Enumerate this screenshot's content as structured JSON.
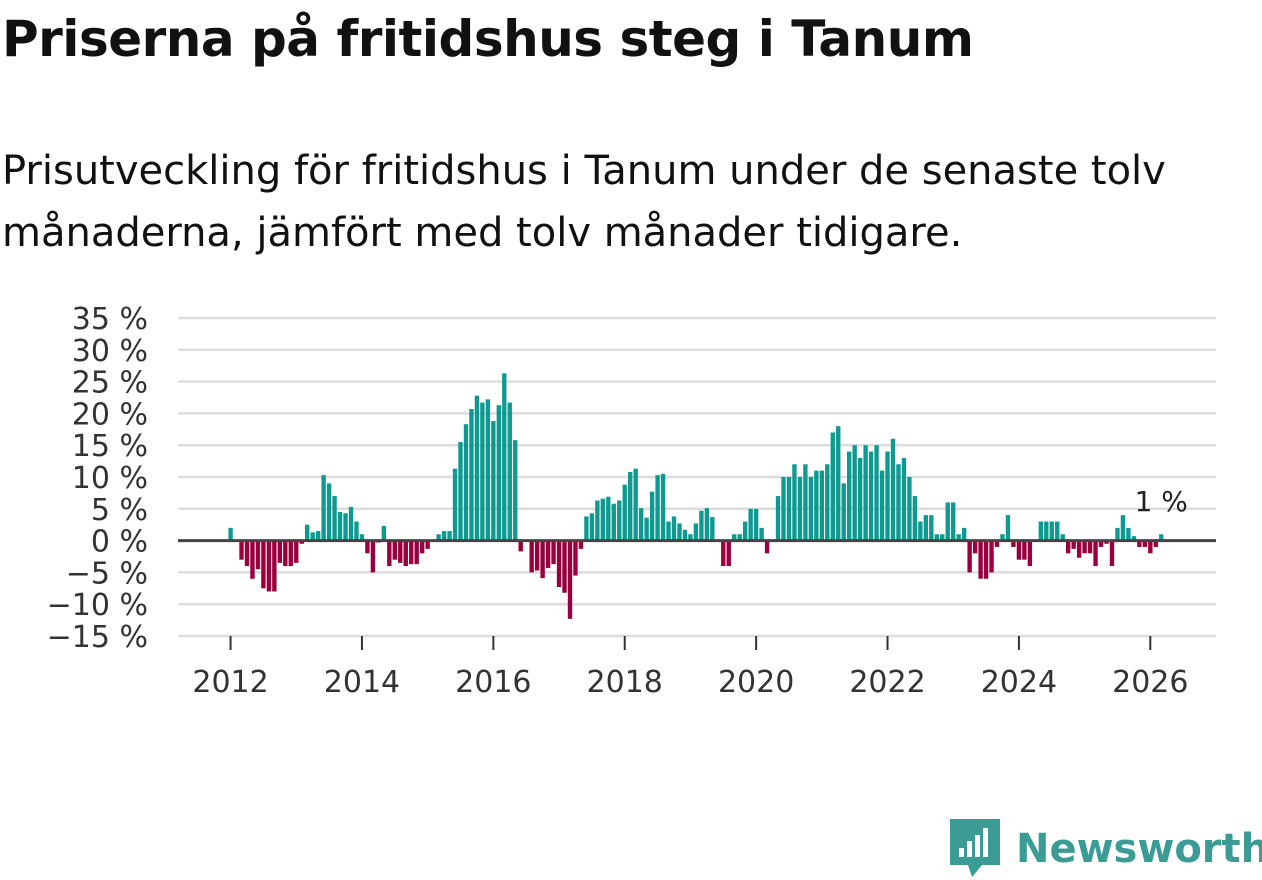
{
  "title": "Priserna på fritidshus steg i Tanum",
  "subtitle": "Prisutveckling för fritidshus i Tanum under de senaste tolv månaderna, jämfört med tolv månader tidigare.",
  "brand": {
    "name": "Newsworthy",
    "icon": "newsworthy-logo-icon",
    "color": "#3a9c94"
  },
  "colors": {
    "positive": "#0f9a91",
    "negative": "#99003d",
    "zero_line": "#444444",
    "grid": "#dddddd"
  },
  "chart_data": {
    "type": "bar",
    "title": "Priserna på fritidshus steg i Tanum",
    "xlabel": "",
    "ylabel": "",
    "ylim": [
      -15,
      35
    ],
    "xlim": [
      2011.2,
      2027.0
    ],
    "y_ticks": [
      -15,
      -10,
      -5,
      0,
      5,
      10,
      15,
      20,
      25,
      30,
      35
    ],
    "y_tick_labels": [
      "−15 %",
      "−10 %",
      "−5 %",
      "0 %",
      "5 %",
      "10 %",
      "15 %",
      "20 %",
      "25 %",
      "30 %",
      "35 %"
    ],
    "x_ticks": [
      2012,
      2014,
      2016,
      2018,
      2020,
      2022,
      2024,
      2026
    ],
    "x_tick_labels": [
      "2012",
      "2014",
      "2016",
      "2018",
      "2020",
      "2022",
      "2024",
      "2026"
    ],
    "grid": true,
    "last_label": "1 %",
    "series": [
      {
        "name": "Prisutveckling",
        "start": "2012-01",
        "frequency": "monthly",
        "values": [
          2,
          0,
          -3,
          -4,
          -6,
          -4.5,
          -7.5,
          -8,
          -8,
          -3.5,
          -4,
          -4,
          -3.5,
          -0.5,
          2.5,
          1.3,
          1.5,
          10.3,
          9,
          7,
          4.5,
          4.3,
          5.3,
          3,
          1,
          -2,
          -5,
          -0.3,
          2.3,
          -4,
          -3,
          -3.5,
          -4,
          -3.7,
          -3.7,
          -2,
          -1.3,
          0,
          1,
          1.5,
          1.5,
          11.3,
          15.5,
          18.3,
          20.7,
          22.8,
          21.7,
          22.2,
          18.8,
          21.3,
          26.3,
          21.7,
          15.8,
          -1.7,
          0,
          -5,
          -4.7,
          -5.9,
          -4.3,
          -3.7,
          -7.3,
          -8.2,
          -12.3,
          -5.5,
          -1.3,
          3.8,
          4.3,
          6.3,
          6.6,
          6.9,
          5.8,
          6.3,
          8.8,
          10.8,
          11.3,
          5.1,
          3.6,
          7.7,
          10.3,
          10.5,
          3,
          3.8,
          2.7,
          1.7,
          1,
          2.7,
          4.7,
          5.1,
          3.7,
          0,
          -4,
          -4,
          1,
          1,
          3,
          5,
          5,
          2,
          -2,
          0,
          7,
          10,
          10,
          12,
          10,
          12,
          10,
          11,
          11,
          12,
          17,
          18,
          9,
          14,
          15,
          13,
          15,
          14,
          15,
          11,
          14,
          16,
          12,
          13,
          10,
          7,
          3,
          4,
          4,
          1,
          1,
          6,
          6,
          1,
          2,
          -5,
          -2,
          -6,
          -6,
          -5,
          -1,
          1,
          4,
          -1,
          -3,
          -3,
          -4,
          0,
          3,
          3,
          3,
          3,
          1,
          -2,
          -1.3,
          -2.7,
          -2,
          -2,
          -4,
          -1,
          -0.5,
          -4,
          2,
          4,
          2,
          0.7,
          -1,
          -1,
          -2,
          -1,
          1
        ]
      }
    ]
  }
}
